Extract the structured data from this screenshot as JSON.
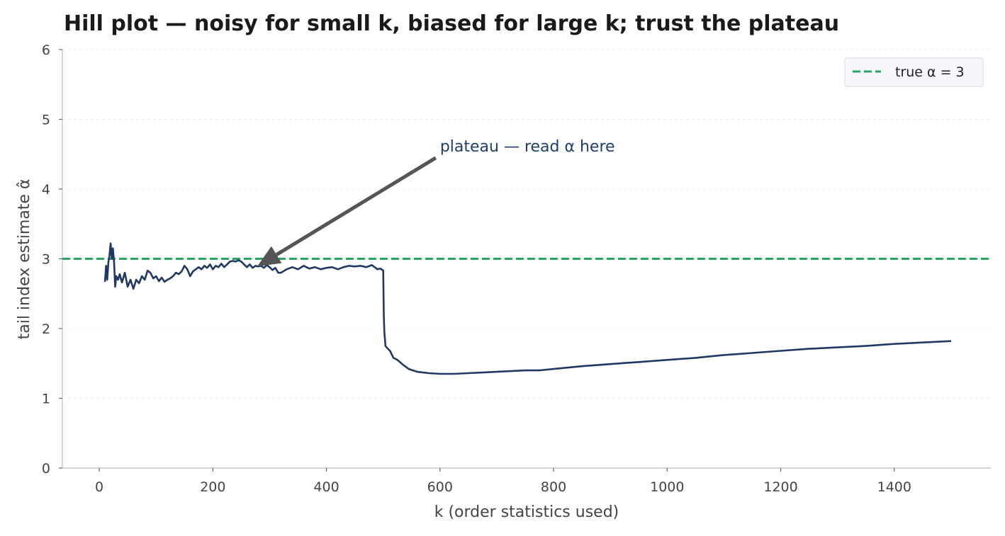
{
  "chart_data": {
    "type": "line",
    "title": "Hill plot — noisy for small k, biased for large k; trust the plateau",
    "xlabel": "k (order statistics used)",
    "ylabel": "tail index estimate α̂",
    "xlim": [
      -65,
      1570
    ],
    "ylim": [
      0,
      6
    ],
    "xticks": [
      0,
      200,
      400,
      600,
      800,
      1000,
      1200,
      1400
    ],
    "yticks": [
      0,
      1,
      2,
      3,
      4,
      5,
      6
    ],
    "grid": "horizontal-dashed",
    "legend_position": "top-right",
    "colors": {
      "hill_line": "#1f3864",
      "true_line": "#27a85a",
      "arrow": "#555555",
      "annotation_text": "#1f3f6e"
    },
    "reference_line": {
      "name": "true α = 3",
      "y": 3,
      "style": "dashed"
    },
    "annotation": {
      "text": "plateau — read α here",
      "text_xy": [
        600,
        4.62
      ],
      "point_xy": [
        278,
        2.89
      ]
    },
    "series": [
      {
        "x": [
          10,
          12,
          14,
          16,
          18,
          20,
          22,
          24,
          26,
          28,
          30,
          33,
          36,
          40,
          45,
          50,
          55,
          60,
          65,
          70,
          75,
          80,
          85,
          90,
          95,
          100,
          105,
          110,
          115,
          120,
          125,
          130,
          135,
          140,
          145,
          150,
          155,
          160,
          165,
          170,
          175,
          180,
          185,
          190,
          195,
          200,
          205,
          210,
          215,
          220,
          225,
          230,
          235,
          240,
          245,
          250,
          255,
          260,
          265,
          270,
          275,
          280,
          285,
          290,
          295,
          300,
          305,
          310,
          315,
          320,
          330,
          340,
          350,
          360,
          370,
          380,
          390,
          400,
          410,
          420,
          430,
          440,
          450,
          460,
          470,
          480,
          490,
          495,
          500,
          501,
          502,
          504,
          507,
          512,
          518,
          525,
          535,
          545,
          560,
          580,
          600,
          625,
          650,
          675,
          700,
          725,
          750,
          775,
          800,
          850,
          900,
          950,
          1000,
          1050,
          1100,
          1150,
          1200,
          1250,
          1300,
          1350,
          1400,
          1450,
          1500
        ],
        "y": [
          2.67,
          2.9,
          2.7,
          2.95,
          3.05,
          3.22,
          3.0,
          3.15,
          2.96,
          2.6,
          2.75,
          2.7,
          2.78,
          2.66,
          2.8,
          2.6,
          2.7,
          2.57,
          2.7,
          2.65,
          2.75,
          2.7,
          2.83,
          2.8,
          2.72,
          2.75,
          2.68,
          2.73,
          2.67,
          2.7,
          2.72,
          2.75,
          2.8,
          2.78,
          2.82,
          2.9,
          2.85,
          2.75,
          2.82,
          2.85,
          2.88,
          2.85,
          2.9,
          2.87,
          2.92,
          2.85,
          2.9,
          2.88,
          2.93,
          2.88,
          2.92,
          2.96,
          2.97,
          2.96,
          2.98,
          2.96,
          2.92,
          2.88,
          2.92,
          2.87,
          2.9,
          2.89,
          2.9,
          2.87,
          2.91,
          2.88,
          2.84,
          2.87,
          2.8,
          2.8,
          2.85,
          2.88,
          2.85,
          2.9,
          2.86,
          2.88,
          2.85,
          2.87,
          2.88,
          2.85,
          2.88,
          2.9,
          2.89,
          2.9,
          2.88,
          2.91,
          2.85,
          2.86,
          2.83,
          2.2,
          1.95,
          1.75,
          1.72,
          1.68,
          1.58,
          1.55,
          1.48,
          1.42,
          1.38,
          1.36,
          1.35,
          1.35,
          1.36,
          1.37,
          1.38,
          1.39,
          1.4,
          1.4,
          1.42,
          1.46,
          1.49,
          1.52,
          1.55,
          1.58,
          1.62,
          1.65,
          1.68,
          1.71,
          1.73,
          1.75,
          1.78,
          1.8,
          1.82
        ]
      }
    ]
  }
}
